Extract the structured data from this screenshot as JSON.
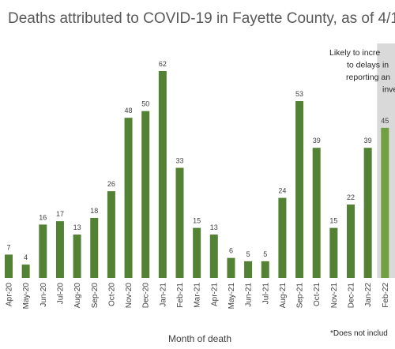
{
  "chart_data": {
    "type": "bar",
    "title": "Deaths attributed to COVID-19 in Fayette County, as of 4/1",
    "x_label": "Month of death",
    "footnote": "*Does not includ",
    "annotation": {
      "lines": [
        "Likely to incre",
        "to delays in",
        "reporting an",
        "invest"
      ],
      "shade_color": "#d9d9d9"
    },
    "categories": [
      "Apr-20",
      "May-20",
      "Jun-20",
      "Jul-20",
      "Aug-20",
      "Sep-20",
      "Oct-20",
      "Nov-20",
      "Dec-20",
      "Jan-21",
      "Feb-21",
      "Mar-21",
      "Apr-21",
      "May-21",
      "Jun-21",
      "Jul-21",
      "Aug-21",
      "Sep-21",
      "Oct-21",
      "Nov-21",
      "Dec-21",
      "Jan-22",
      "Feb-22"
    ],
    "values": [
      7,
      4,
      16,
      17,
      13,
      18,
      26,
      48,
      50,
      62,
      33,
      15,
      13,
      6,
      5,
      5,
      24,
      53,
      39,
      15,
      22,
      39,
      45
    ],
    "bar_colors": [
      "#548235",
      "#548235",
      "#548235",
      "#548235",
      "#548235",
      "#548235",
      "#548235",
      "#548235",
      "#548235",
      "#548235",
      "#548235",
      "#548235",
      "#548235",
      "#548235",
      "#548235",
      "#548235",
      "#548235",
      "#548235",
      "#548235",
      "#548235",
      "#548235",
      "#548235",
      "#70a041"
    ]
  }
}
